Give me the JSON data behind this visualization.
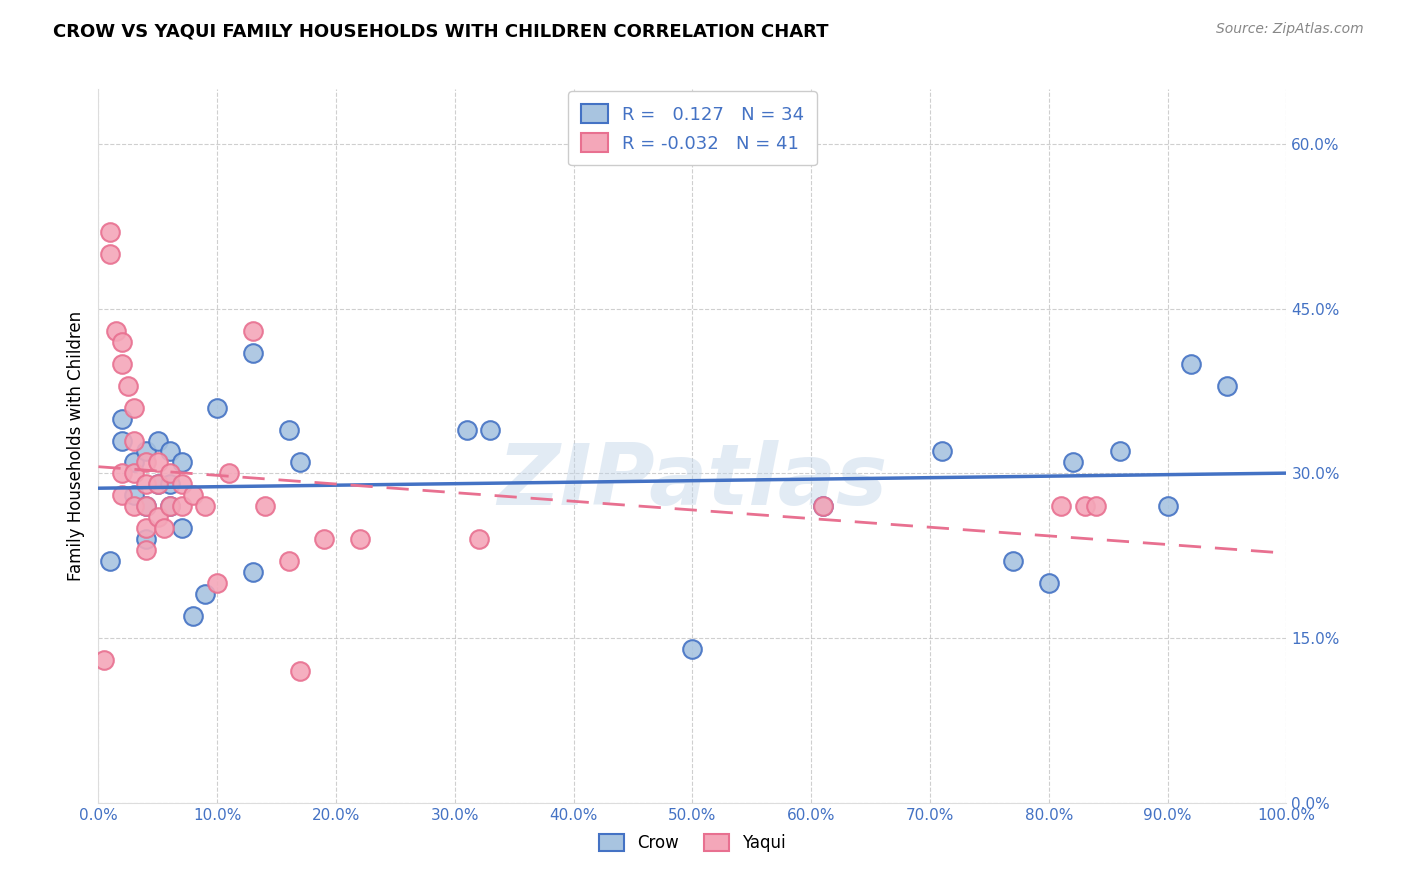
{
  "title": "CROW VS YAQUI FAMILY HOUSEHOLDS WITH CHILDREN CORRELATION CHART",
  "source": "Source: ZipAtlas.com",
  "ylabel": "Family Households with Children",
  "xlim": [
    0.0,
    1.0
  ],
  "ylim": [
    0.0,
    0.65
  ],
  "yticks": [
    0.0,
    0.15,
    0.3,
    0.45,
    0.6
  ],
  "xticks": [
    0.0,
    0.1,
    0.2,
    0.3,
    0.4,
    0.5,
    0.6,
    0.7,
    0.8,
    0.9,
    1.0
  ],
  "crow_R": 0.127,
  "crow_N": 34,
  "yaqui_R": -0.032,
  "yaqui_N": 41,
  "crow_color": "#a8c4e0",
  "yaqui_color": "#f4a7b9",
  "crow_line_color": "#4472c4",
  "yaqui_line_color": "#e87090",
  "watermark": "ZIPatlas",
  "crow_x": [
    0.01,
    0.02,
    0.02,
    0.03,
    0.03,
    0.04,
    0.04,
    0.04,
    0.05,
    0.05,
    0.06,
    0.06,
    0.06,
    0.07,
    0.07,
    0.08,
    0.09,
    0.1,
    0.13,
    0.13,
    0.16,
    0.17,
    0.31,
    0.33,
    0.5,
    0.61,
    0.71,
    0.77,
    0.8,
    0.82,
    0.86,
    0.9,
    0.92,
    0.95
  ],
  "crow_y": [
    0.22,
    0.33,
    0.35,
    0.31,
    0.28,
    0.32,
    0.27,
    0.24,
    0.29,
    0.33,
    0.32,
    0.29,
    0.27,
    0.25,
    0.31,
    0.17,
    0.19,
    0.36,
    0.21,
    0.41,
    0.34,
    0.31,
    0.34,
    0.34,
    0.14,
    0.27,
    0.32,
    0.22,
    0.2,
    0.31,
    0.32,
    0.27,
    0.4,
    0.38
  ],
  "yaqui_x": [
    0.005,
    0.01,
    0.01,
    0.015,
    0.02,
    0.02,
    0.02,
    0.02,
    0.025,
    0.03,
    0.03,
    0.03,
    0.03,
    0.04,
    0.04,
    0.04,
    0.04,
    0.04,
    0.05,
    0.05,
    0.05,
    0.055,
    0.06,
    0.06,
    0.07,
    0.07,
    0.08,
    0.09,
    0.1,
    0.11,
    0.13,
    0.14,
    0.16,
    0.17,
    0.19,
    0.22,
    0.32,
    0.61,
    0.81,
    0.83,
    0.84
  ],
  "yaqui_y": [
    0.13,
    0.52,
    0.5,
    0.43,
    0.42,
    0.4,
    0.3,
    0.28,
    0.38,
    0.36,
    0.33,
    0.3,
    0.27,
    0.31,
    0.29,
    0.27,
    0.25,
    0.23,
    0.31,
    0.29,
    0.26,
    0.25,
    0.3,
    0.27,
    0.29,
    0.27,
    0.28,
    0.27,
    0.2,
    0.3,
    0.43,
    0.27,
    0.22,
    0.12,
    0.24,
    0.24,
    0.24,
    0.27,
    0.27,
    0.27,
    0.27
  ]
}
